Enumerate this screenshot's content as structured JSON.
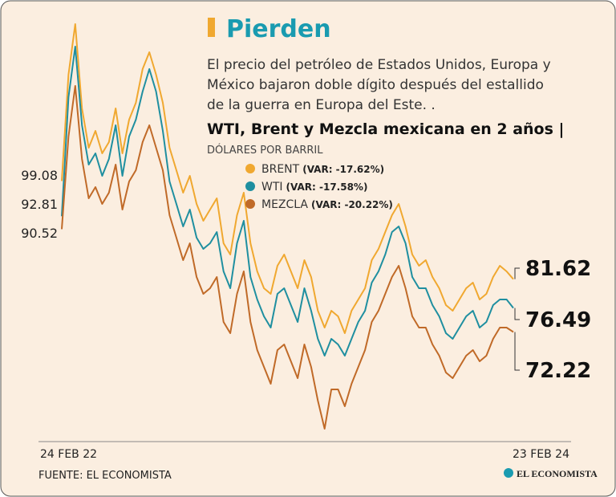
{
  "chart_data": {
    "type": "line",
    "title": "Pierden",
    "subtitle": [
      "El precio del petróleo de Estados Unidos, Europa y",
      "México bajaron doble dígito después del estallido",
      "de la guerra en Europa del Este. ."
    ],
    "heading": "WTI, Brent y Mezcla mexicana en 2 años |",
    "y_label": "DÓLARES POR BARRIL",
    "source": "FUENTE: EL ECONOMISTA",
    "logo": "EL ECONOMISTA",
    "ylim": [
      53,
      130
    ],
    "categories": [
      "24 FEB 22",
      null,
      null,
      null,
      null,
      null,
      null,
      null,
      null,
      null,
      null,
      null,
      null,
      null,
      null,
      null,
      null,
      null,
      null,
      null,
      null,
      null,
      null,
      null,
      null,
      null,
      null,
      null,
      null,
      null,
      null,
      null,
      null,
      null,
      null,
      null,
      null,
      null,
      null,
      null,
      null,
      null,
      null,
      null,
      null,
      null,
      null,
      null,
      null,
      null,
      null,
      null,
      null,
      null,
      null,
      null,
      null,
      null,
      null,
      null,
      null,
      null,
      null,
      null,
      null,
      null,
      null,
      "23 FEB 24"
    ],
    "series": [
      {
        "name": "BRENT",
        "legend_detail": "(VAR: -17.62%)",
        "color": "#f0a830",
        "values": [
          99.08,
          118,
          127,
          112,
          105,
          108,
          104,
          106,
          112,
          104,
          110,
          113,
          119,
          122,
          118,
          113,
          105,
          101,
          97,
          100,
          95,
          92,
          94,
          96,
          88,
          86,
          93,
          97,
          88,
          83,
          80,
          79,
          84,
          86,
          83,
          80,
          85,
          82,
          76,
          73,
          76,
          75,
          72,
          76,
          78,
          80,
          85,
          87,
          90,
          93,
          95,
          91,
          86,
          84,
          85,
          82,
          80,
          77,
          76,
          78,
          80,
          81,
          78,
          79,
          82,
          84,
          83,
          81.62
        ]
      },
      {
        "name": "WTI",
        "legend_detail": "(VAR: -17.58%)",
        "color": "#1f8fa0",
        "values": [
          92.81,
          114,
          123,
          109,
          102,
          104,
          100,
          103,
          109,
          100,
          107,
          110,
          115,
          119,
          115,
          108,
          99,
          95,
          91,
          94,
          89,
          87,
          88,
          90,
          83,
          80,
          88,
          92,
          82,
          78,
          75,
          73,
          79,
          80,
          77,
          74,
          80,
          76,
          71,
          68,
          71,
          70,
          68,
          71,
          74,
          76,
          81,
          83,
          86,
          90,
          91,
          88,
          82,
          80,
          80,
          77,
          75,
          72,
          71,
          73,
          75,
          76,
          73,
          74,
          77,
          78,
          78,
          76.49
        ]
      },
      {
        "name": "MEZCLA",
        "legend_detail": "(VAR: -20.22%)",
        "color": "#c06a28",
        "values": [
          90.52,
          107,
          116,
          103,
          96,
          98,
          95,
          97,
          102,
          94,
          99,
          101,
          106,
          109,
          105,
          101,
          93,
          89,
          85,
          88,
          82,
          79,
          80,
          82,
          74,
          72,
          79,
          83,
          74,
          69,
          66,
          63,
          69,
          70,
          67,
          64,
          70,
          66,
          60,
          55,
          62,
          62,
          59,
          63,
          66,
          69,
          74,
          76,
          79,
          82,
          84,
          80,
          75,
          73,
          73,
          70,
          68,
          65,
          64,
          66,
          68,
          69,
          67,
          68,
          71,
          73,
          73,
          72.22
        ]
      }
    ]
  }
}
